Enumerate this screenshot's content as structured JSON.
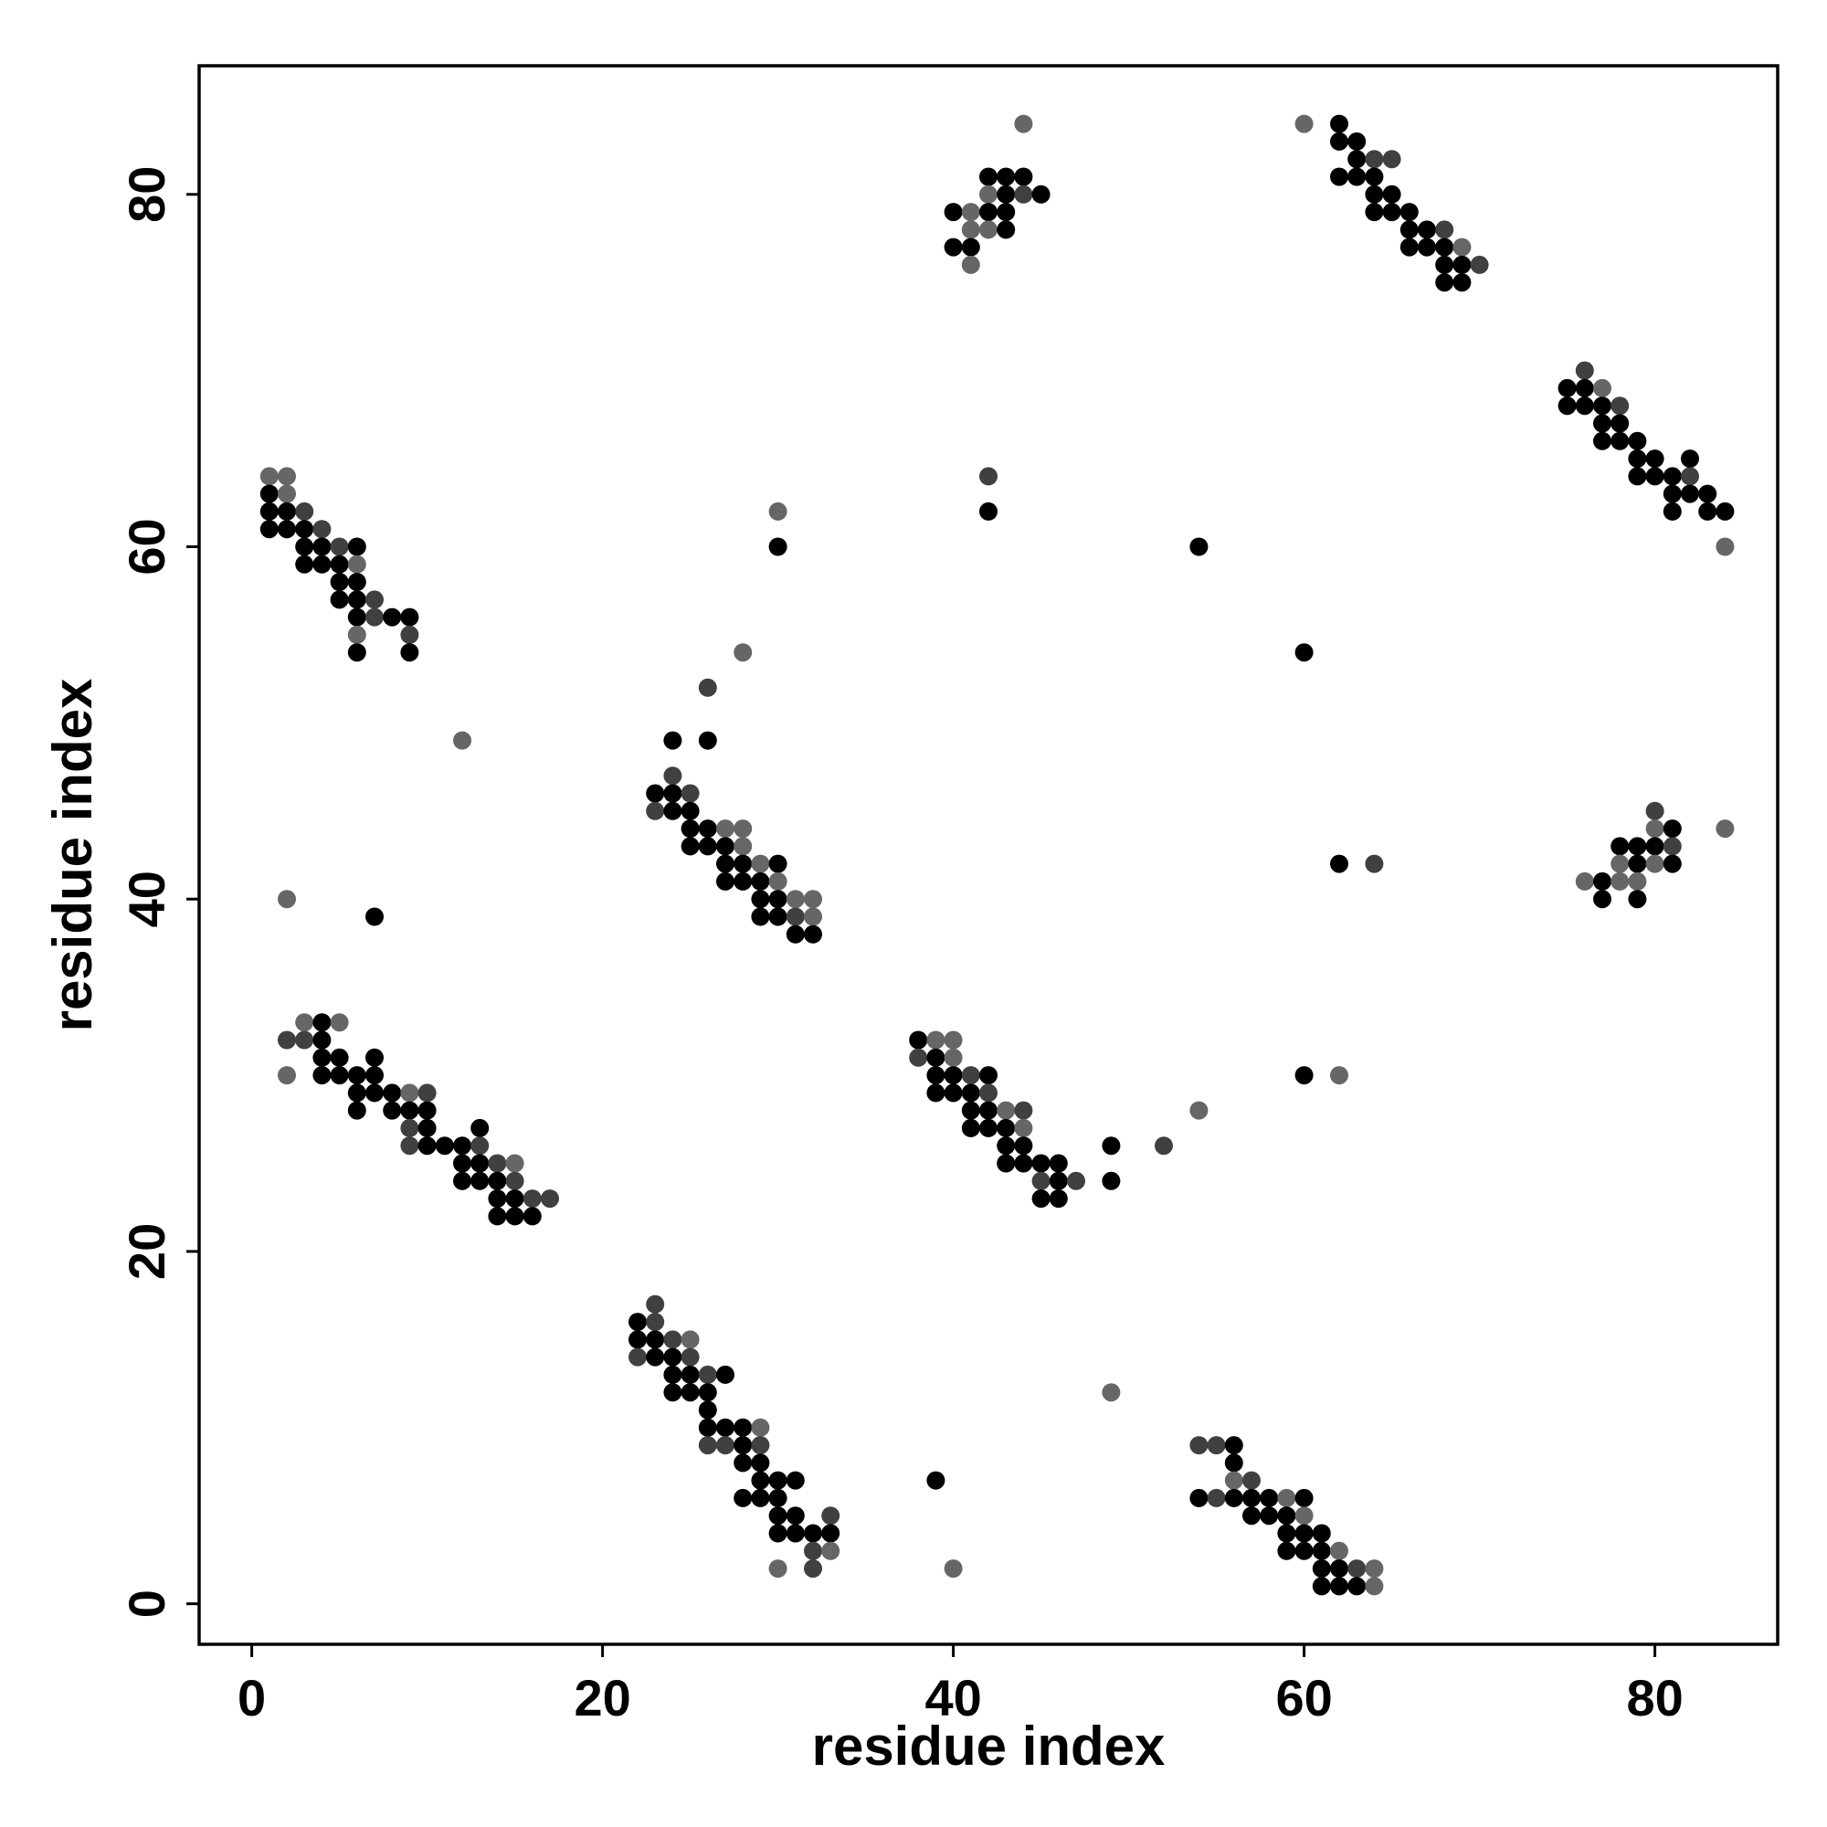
{
  "chart_data": {
    "type": "scatter",
    "title": "",
    "xlabel": "residue index",
    "ylabel": "residue index",
    "xlim": [
      -3,
      87
    ],
    "ylim": [
      -2.3,
      87.3
    ],
    "x_ticks": [
      0,
      20,
      40,
      60,
      80
    ],
    "y_ticks": [
      0,
      20,
      40,
      60,
      80
    ],
    "grid": false,
    "legend": "none",
    "shade_colors": {
      "1": "#000000",
      "2": "#262626",
      "3": "#404040",
      "4": "#666666"
    },
    "points": [
      [
        1,
        64,
        4
      ],
      [
        2,
        64,
        4
      ],
      [
        1,
        63,
        1
      ],
      [
        2,
        63,
        4
      ],
      [
        1,
        62,
        1
      ],
      [
        2,
        62,
        1
      ],
      [
        3,
        62,
        3
      ],
      [
        1,
        61,
        1
      ],
      [
        2,
        61,
        1
      ],
      [
        3,
        61,
        1
      ],
      [
        4,
        61,
        3
      ],
      [
        3,
        60,
        1
      ],
      [
        4,
        60,
        1
      ],
      [
        5,
        60,
        3
      ],
      [
        6,
        60,
        1
      ],
      [
        3,
        59,
        1
      ],
      [
        4,
        59,
        1
      ],
      [
        5,
        59,
        1
      ],
      [
        6,
        59,
        4
      ],
      [
        5,
        58,
        1
      ],
      [
        6,
        58,
        1
      ],
      [
        5,
        57,
        1
      ],
      [
        6,
        57,
        1
      ],
      [
        7,
        57,
        3
      ],
      [
        6,
        56,
        1
      ],
      [
        7,
        56,
        3
      ],
      [
        8,
        56,
        1
      ],
      [
        9,
        56,
        1
      ],
      [
        6,
        55,
        4
      ],
      [
        9,
        55,
        3
      ],
      [
        6,
        54,
        1
      ],
      [
        9,
        54,
        1
      ],
      [
        12,
        49,
        4
      ],
      [
        2,
        40,
        4
      ],
      [
        7,
        39,
        1
      ],
      [
        3,
        33,
        4
      ],
      [
        4,
        33,
        1
      ],
      [
        5,
        33,
        4
      ],
      [
        2,
        32,
        3
      ],
      [
        3,
        32,
        3
      ],
      [
        4,
        32,
        1
      ],
      [
        4,
        31,
        1
      ],
      [
        5,
        31,
        1
      ],
      [
        7,
        31,
        1
      ],
      [
        2,
        30,
        4
      ],
      [
        4,
        30,
        1
      ],
      [
        5,
        30,
        1
      ],
      [
        6,
        30,
        1
      ],
      [
        7,
        30,
        1
      ],
      [
        6,
        29,
        1
      ],
      [
        7,
        29,
        1
      ],
      [
        8,
        29,
        1
      ],
      [
        9,
        29,
        4
      ],
      [
        10,
        29,
        3
      ],
      [
        6,
        28,
        1
      ],
      [
        8,
        28,
        1
      ],
      [
        9,
        28,
        1
      ],
      [
        10,
        28,
        1
      ],
      [
        9,
        27,
        3
      ],
      [
        10,
        27,
        1
      ],
      [
        13,
        27,
        1
      ],
      [
        9,
        26,
        3
      ],
      [
        10,
        26,
        1
      ],
      [
        11,
        26,
        1
      ],
      [
        12,
        26,
        1
      ],
      [
        13,
        26,
        3
      ],
      [
        12,
        25,
        1
      ],
      [
        13,
        25,
        1
      ],
      [
        14,
        25,
        3
      ],
      [
        15,
        25,
        4
      ],
      [
        12,
        24,
        1
      ],
      [
        13,
        24,
        1
      ],
      [
        14,
        24,
        1
      ],
      [
        15,
        24,
        3
      ],
      [
        14,
        23,
        1
      ],
      [
        15,
        23,
        1
      ],
      [
        16,
        23,
        3
      ],
      [
        17,
        23,
        3
      ],
      [
        14,
        22,
        1
      ],
      [
        15,
        22,
        1
      ],
      [
        16,
        22,
        1
      ],
      [
        23,
        17,
        3
      ],
      [
        22,
        16,
        1
      ],
      [
        23,
        16,
        3
      ],
      [
        22,
        15,
        1
      ],
      [
        23,
        15,
        1
      ],
      [
        24,
        15,
        3
      ],
      [
        25,
        15,
        4
      ],
      [
        22,
        14,
        3
      ],
      [
        23,
        14,
        1
      ],
      [
        24,
        14,
        1
      ],
      [
        25,
        14,
        3
      ],
      [
        24,
        13,
        1
      ],
      [
        25,
        13,
        1
      ],
      [
        26,
        13,
        3
      ],
      [
        27,
        13,
        1
      ],
      [
        24,
        12,
        1
      ],
      [
        25,
        12,
        1
      ],
      [
        26,
        12,
        1
      ],
      [
        26,
        11,
        1
      ],
      [
        26,
        10,
        1
      ],
      [
        27,
        10,
        1
      ],
      [
        28,
        10,
        1
      ],
      [
        29,
        10,
        4
      ],
      [
        26,
        9,
        3
      ],
      [
        27,
        9,
        3
      ],
      [
        28,
        9,
        1
      ],
      [
        29,
        9,
        3
      ],
      [
        28,
        8,
        1
      ],
      [
        29,
        8,
        1
      ],
      [
        29,
        7,
        1
      ],
      [
        30,
        7,
        1
      ],
      [
        31,
        7,
        1
      ],
      [
        28,
        6,
        1
      ],
      [
        29,
        6,
        1
      ],
      [
        30,
        6,
        1
      ],
      [
        30,
        5,
        1
      ],
      [
        31,
        5,
        1
      ],
      [
        33,
        5,
        3
      ],
      [
        30,
        4,
        1
      ],
      [
        31,
        4,
        1
      ],
      [
        32,
        4,
        1
      ],
      [
        33,
        4,
        1
      ],
      [
        32,
        3,
        3
      ],
      [
        33,
        3,
        4
      ],
      [
        30,
        2,
        4
      ],
      [
        32,
        2,
        3
      ],
      [
        39,
        7,
        1
      ],
      [
        40,
        2,
        4
      ],
      [
        26,
        52,
        3
      ],
      [
        28,
        54,
        4
      ],
      [
        24,
        49,
        1
      ],
      [
        26,
        49,
        1
      ],
      [
        24,
        47,
        3
      ],
      [
        23,
        46,
        1
      ],
      [
        24,
        46,
        1
      ],
      [
        25,
        46,
        3
      ],
      [
        23,
        45,
        3
      ],
      [
        24,
        45,
        1
      ],
      [
        25,
        45,
        1
      ],
      [
        25,
        44,
        1
      ],
      [
        26,
        44,
        1
      ],
      [
        27,
        44,
        4
      ],
      [
        28,
        44,
        4
      ],
      [
        25,
        43,
        1
      ],
      [
        26,
        43,
        1
      ],
      [
        27,
        43,
        1
      ],
      [
        28,
        43,
        4
      ],
      [
        27,
        42,
        1
      ],
      [
        28,
        42,
        1
      ],
      [
        29,
        42,
        4
      ],
      [
        30,
        42,
        1
      ],
      [
        27,
        41,
        1
      ],
      [
        28,
        41,
        1
      ],
      [
        29,
        41,
        1
      ],
      [
        30,
        41,
        4
      ],
      [
        29,
        40,
        1
      ],
      [
        30,
        40,
        1
      ],
      [
        31,
        40,
        4
      ],
      [
        32,
        40,
        4
      ],
      [
        29,
        39,
        1
      ],
      [
        30,
        39,
        1
      ],
      [
        31,
        39,
        3
      ],
      [
        32,
        39,
        4
      ],
      [
        31,
        38,
        1
      ],
      [
        32,
        38,
        1
      ],
      [
        30,
        62,
        4
      ],
      [
        30,
        60,
        1
      ],
      [
        38,
        32,
        1
      ],
      [
        39,
        32,
        4
      ],
      [
        40,
        32,
        4
      ],
      [
        38,
        31,
        3
      ],
      [
        39,
        31,
        1
      ],
      [
        40,
        31,
        4
      ],
      [
        39,
        30,
        1
      ],
      [
        40,
        30,
        1
      ],
      [
        41,
        30,
        3
      ],
      [
        42,
        30,
        1
      ],
      [
        39,
        29,
        1
      ],
      [
        40,
        29,
        1
      ],
      [
        41,
        29,
        1
      ],
      [
        42,
        29,
        3
      ],
      [
        41,
        28,
        1
      ],
      [
        42,
        28,
        1
      ],
      [
        43,
        28,
        4
      ],
      [
        44,
        28,
        3
      ],
      [
        41,
        27,
        1
      ],
      [
        42,
        27,
        1
      ],
      [
        43,
        27,
        1
      ],
      [
        44,
        27,
        4
      ],
      [
        43,
        26,
        1
      ],
      [
        44,
        26,
        1
      ],
      [
        43,
        25,
        1
      ],
      [
        44,
        25,
        1
      ],
      [
        45,
        25,
        1
      ],
      [
        46,
        25,
        1
      ],
      [
        45,
        24,
        3
      ],
      [
        46,
        24,
        1
      ],
      [
        47,
        24,
        3
      ],
      [
        45,
        23,
        1
      ],
      [
        46,
        23,
        1
      ],
      [
        49,
        26,
        1
      ],
      [
        49,
        24,
        1
      ],
      [
        52,
        26,
        3
      ],
      [
        54,
        28,
        4
      ],
      [
        49,
        12,
        4
      ],
      [
        44,
        84,
        4
      ],
      [
        42,
        81,
        1
      ],
      [
        43,
        81,
        1
      ],
      [
        44,
        81,
        1
      ],
      [
        42,
        80,
        4
      ],
      [
        43,
        80,
        1
      ],
      [
        44,
        80,
        3
      ],
      [
        45,
        80,
        1
      ],
      [
        40,
        79,
        1
      ],
      [
        41,
        79,
        4
      ],
      [
        42,
        79,
        1
      ],
      [
        43,
        79,
        1
      ],
      [
        41,
        78,
        4
      ],
      [
        42,
        78,
        4
      ],
      [
        43,
        78,
        1
      ],
      [
        40,
        77,
        1
      ],
      [
        41,
        77,
        1
      ],
      [
        41,
        76,
        4
      ],
      [
        42,
        64,
        3
      ],
      [
        42,
        62,
        1
      ],
      [
        54,
        60,
        1
      ],
      [
        60,
        54,
        1
      ],
      [
        60,
        30,
        1
      ],
      [
        62,
        30,
        4
      ],
      [
        62,
        42,
        1
      ],
      [
        64,
        42,
        3
      ],
      [
        54,
        9,
        3
      ],
      [
        55,
        9,
        3
      ],
      [
        56,
        9,
        1
      ],
      [
        56,
        8,
        1
      ],
      [
        56,
        7,
        4
      ],
      [
        57,
        7,
        3
      ],
      [
        54,
        6,
        1
      ],
      [
        55,
        6,
        3
      ],
      [
        56,
        6,
        1
      ],
      [
        57,
        6,
        1
      ],
      [
        58,
        6,
        1
      ],
      [
        59,
        6,
        4
      ],
      [
        60,
        6,
        1
      ],
      [
        57,
        5,
        1
      ],
      [
        58,
        5,
        1
      ],
      [
        59,
        5,
        1
      ],
      [
        60,
        5,
        4
      ],
      [
        59,
        4,
        1
      ],
      [
        60,
        4,
        1
      ],
      [
        61,
        4,
        1
      ],
      [
        59,
        3,
        1
      ],
      [
        60,
        3,
        1
      ],
      [
        61,
        3,
        1
      ],
      [
        62,
        3,
        4
      ],
      [
        61,
        2,
        1
      ],
      [
        62,
        2,
        1
      ],
      [
        63,
        2,
        3
      ],
      [
        64,
        2,
        4
      ],
      [
        61,
        1,
        1
      ],
      [
        62,
        1,
        1
      ],
      [
        63,
        1,
        1
      ],
      [
        64,
        1,
        4
      ],
      [
        60,
        84,
        4
      ],
      [
        62,
        84,
        1
      ],
      [
        62,
        83,
        1
      ],
      [
        63,
        83,
        1
      ],
      [
        63,
        82,
        1
      ],
      [
        64,
        82,
        3
      ],
      [
        65,
        82,
        3
      ],
      [
        62,
        81,
        1
      ],
      [
        63,
        81,
        1
      ],
      [
        64,
        81,
        1
      ],
      [
        64,
        80,
        1
      ],
      [
        65,
        80,
        1
      ],
      [
        64,
        79,
        1
      ],
      [
        65,
        79,
        1
      ],
      [
        66,
        79,
        1
      ],
      [
        66,
        78,
        1
      ],
      [
        67,
        78,
        1
      ],
      [
        68,
        78,
        3
      ],
      [
        66,
        77,
        1
      ],
      [
        67,
        77,
        1
      ],
      [
        68,
        77,
        1
      ],
      [
        69,
        77,
        4
      ],
      [
        68,
        76,
        1
      ],
      [
        69,
        76,
        1
      ],
      [
        70,
        76,
        3
      ],
      [
        68,
        75,
        1
      ],
      [
        69,
        75,
        1
      ],
      [
        76,
        70,
        3
      ],
      [
        75,
        69,
        1
      ],
      [
        76,
        69,
        1
      ],
      [
        77,
        69,
        4
      ],
      [
        75,
        68,
        1
      ],
      [
        76,
        68,
        1
      ],
      [
        77,
        68,
        1
      ],
      [
        78,
        68,
        3
      ],
      [
        77,
        67,
        1
      ],
      [
        78,
        67,
        1
      ],
      [
        77,
        66,
        1
      ],
      [
        78,
        66,
        1
      ],
      [
        79,
        66,
        1
      ],
      [
        79,
        65,
        1
      ],
      [
        80,
        65,
        1
      ],
      [
        82,
        65,
        1
      ],
      [
        79,
        64,
        1
      ],
      [
        80,
        64,
        1
      ],
      [
        81,
        64,
        1
      ],
      [
        82,
        64,
        3
      ],
      [
        81,
        63,
        1
      ],
      [
        82,
        63,
        1
      ],
      [
        83,
        63,
        1
      ],
      [
        81,
        62,
        1
      ],
      [
        83,
        62,
        1
      ],
      [
        84,
        62,
        1
      ],
      [
        84,
        60,
        4
      ],
      [
        80,
        45,
        3
      ],
      [
        80,
        44,
        4
      ],
      [
        81,
        44,
        1
      ],
      [
        84,
        44,
        4
      ],
      [
        78,
        43,
        1
      ],
      [
        79,
        43,
        1
      ],
      [
        80,
        43,
        1
      ],
      [
        81,
        43,
        3
      ],
      [
        78,
        42,
        4
      ],
      [
        79,
        42,
        1
      ],
      [
        80,
        42,
        4
      ],
      [
        81,
        42,
        1
      ],
      [
        76,
        41,
        4
      ],
      [
        77,
        41,
        1
      ],
      [
        78,
        41,
        4
      ],
      [
        79,
        41,
        4
      ],
      [
        77,
        40,
        1
      ],
      [
        79,
        40,
        1
      ]
    ]
  }
}
